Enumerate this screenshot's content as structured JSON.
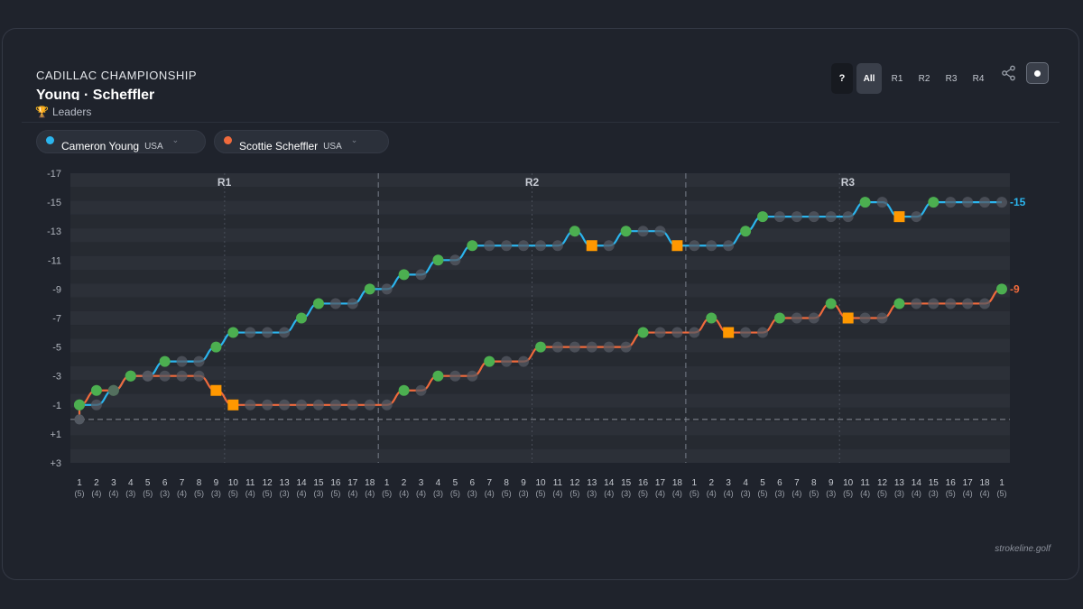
{
  "header": {
    "event": "CADILLAC CHAMPIONSHIP",
    "matchup": "Young · Scheffler",
    "leaders_label": "Leaders"
  },
  "controls": {
    "help": "?",
    "tabs": [
      "All",
      "R1",
      "R2",
      "R3",
      "R4"
    ],
    "active_tab": "All"
  },
  "players": [
    {
      "name": "Cameron Young",
      "country": "USA",
      "color": "#2bb5ee"
    },
    {
      "name": "Scottie Scheffler",
      "country": "USA",
      "color": "#f06a3c"
    }
  ],
  "credit": "strokeline.golf",
  "colors": {
    "birdie": "#4caf50",
    "bogey": "#ff9800",
    "par": "#555a63",
    "band_light": "#2c3038",
    "band_dark": "#262a31"
  },
  "chart_data": {
    "type": "line",
    "round_labels": [
      "R1",
      "R2",
      "R3"
    ],
    "holes": [
      1,
      2,
      3,
      4,
      5,
      6,
      7,
      8,
      9,
      10,
      11,
      12,
      13,
      14,
      15,
      16,
      17,
      18
    ],
    "pars": [
      5,
      4,
      4,
      3,
      5,
      3,
      4,
      5,
      3,
      5,
      4,
      5,
      3,
      4,
      3,
      5,
      4,
      4
    ],
    "y_ticks": [
      "-17",
      "-15",
      "-13",
      "-11",
      "-9",
      "-7",
      "-5",
      "-3",
      "-1",
      "+1",
      "+3"
    ],
    "ylim": [
      -17,
      3
    ],
    "series": [
      {
        "name": "Cameron Young",
        "final_label": "-15",
        "values": [
          0,
          -1,
          -1,
          -2,
          -3,
          -3,
          -4,
          -4,
          -4,
          -5,
          -6,
          -6,
          -6,
          -6,
          -7,
          -8,
          -8,
          -8,
          -9,
          -9,
          -10,
          -10,
          -11,
          -11,
          -12,
          -12,
          -12,
          -12,
          -12,
          -12,
          -13,
          -12,
          -12,
          -13,
          -13,
          -13,
          -12,
          -12,
          -12,
          -12,
          -13,
          -14,
          -14,
          -14,
          -14,
          -14,
          -14,
          -15,
          -15,
          -14,
          -14,
          -15,
          -15,
          -15,
          -15,
          -15
        ]
      },
      {
        "name": "Scottie Scheffler",
        "final_label": "-9",
        "values": [
          0,
          -1,
          -2,
          -2,
          -3,
          -3,
          -3,
          -3,
          -3,
          -2,
          -1,
          -1,
          -1,
          -1,
          -1,
          -1,
          -1,
          -1,
          -1,
          -1,
          -2,
          -2,
          -3,
          -3,
          -3,
          -4,
          -4,
          -4,
          -5,
          -5,
          -5,
          -5,
          -5,
          -5,
          -6,
          -6,
          -6,
          -6,
          -7,
          -6,
          -6,
          -6,
          -7,
          -7,
          -7,
          -8,
          -7,
          -7,
          -7,
          -8,
          -8,
          -8,
          -8,
          -8,
          -8,
          -9
        ]
      }
    ]
  }
}
